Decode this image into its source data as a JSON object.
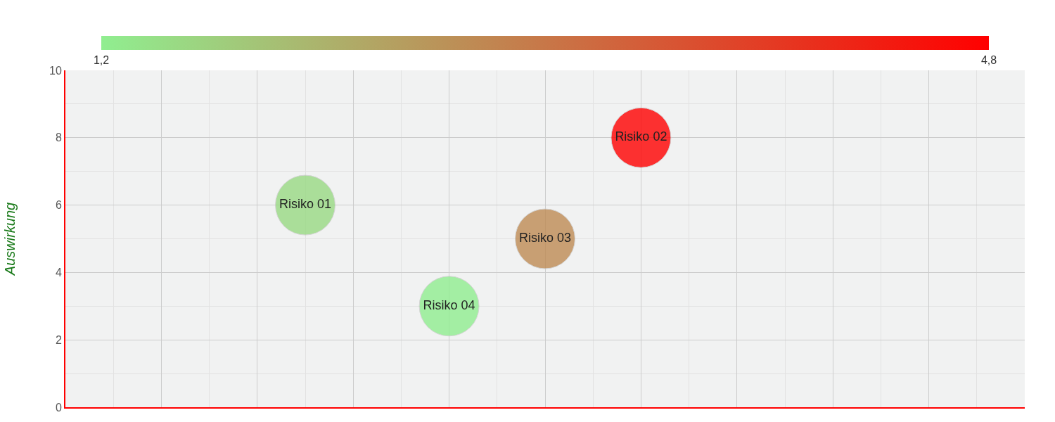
{
  "chart_data": {
    "type": "scatter",
    "ylabel": "Auswirkung",
    "categories": [
      null,
      null,
      null,
      null,
      null,
      null,
      null,
      null,
      null,
      null,
      null,
      null,
      null,
      null,
      null,
      null,
      null,
      null,
      null,
      null,
      null
    ],
    "series": [
      {
        "name": "Risiko 01",
        "values": [
          null,
          null,
          null,
          null,
          null,
          6,
          null,
          null,
          null,
          null,
          null,
          null,
          null,
          null,
          null,
          null,
          null,
          null,
          null,
          null,
          null
        ],
        "cvalues": [
          null,
          null,
          null,
          null,
          null,
          1.5,
          null,
          null,
          null,
          null,
          null,
          null,
          null,
          null,
          null,
          null,
          null,
          null,
          null,
          null,
          null
        ]
      },
      {
        "name": "Risiko 02",
        "values": [
          null,
          null,
          null,
          null,
          null,
          null,
          null,
          null,
          null,
          null,
          null,
          null,
          8,
          null,
          null,
          null,
          null,
          null,
          null,
          null,
          null
        ],
        "cvalues": [
          null,
          null,
          null,
          null,
          null,
          null,
          null,
          null,
          null,
          null,
          null,
          null,
          4.8,
          null,
          null,
          null,
          null,
          null,
          null,
          null,
          null
        ]
      },
      {
        "name": "Risiko 03",
        "values": [
          null,
          null,
          null,
          null,
          null,
          null,
          null,
          null,
          null,
          null,
          5,
          null,
          null,
          null,
          null,
          null,
          null,
          null,
          null,
          null,
          null
        ],
        "cvalues": [
          null,
          null,
          null,
          null,
          null,
          null,
          null,
          null,
          null,
          null,
          2.7,
          null,
          null,
          null,
          null,
          null,
          null,
          null,
          null,
          null,
          null
        ]
      },
      {
        "name": "Risiko 04",
        "values": [
          null,
          null,
          null,
          null,
          null,
          null,
          null,
          null,
          3,
          null,
          null,
          null,
          null,
          null,
          null,
          null,
          null,
          null,
          null,
          null,
          null
        ],
        "cvalues": [
          null,
          null,
          null,
          null,
          null,
          null,
          null,
          null,
          1.2,
          null,
          null,
          null,
          null,
          null,
          null,
          null,
          null,
          null,
          null,
          null,
          null
        ]
      }
    ],
    "clim": [
      1.2,
      4.8
    ],
    "cticks": [
      {
        "value": 1.2,
        "label": "1,2"
      },
      {
        "value": 4.8,
        "label": "4,8"
      }
    ],
    "ylim": [
      0,
      10
    ],
    "yticks": [
      0,
      2,
      4,
      6,
      8,
      10
    ],
    "tick_labels": "y",
    "grid": true,
    "marker": "circle",
    "legend": false
  }
}
